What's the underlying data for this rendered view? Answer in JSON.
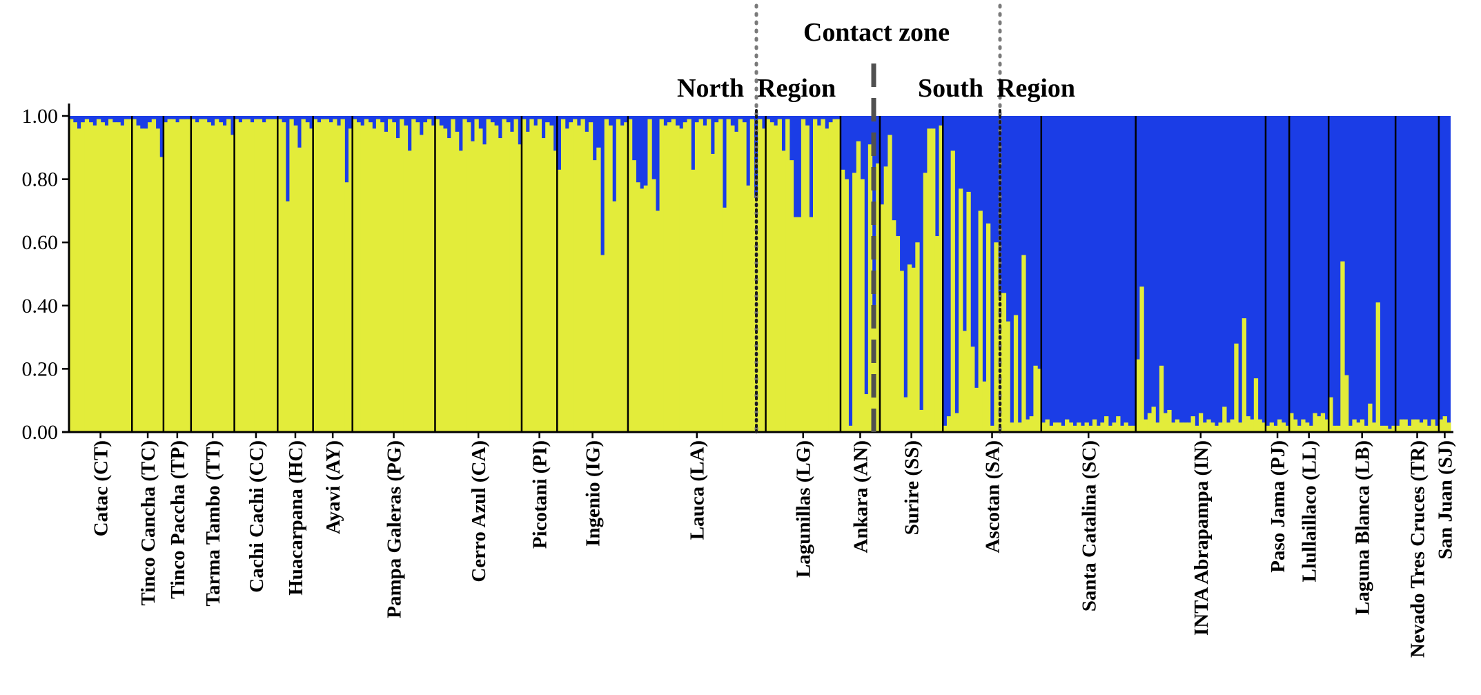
{
  "chart_data": {
    "type": "bar",
    "subtype": "stacked-admixture",
    "title": "",
    "xlabel": "",
    "ylabel": "",
    "ylim": [
      0,
      1
    ],
    "yticks": [
      "0.00",
      "0.20",
      "0.40",
      "0.60",
      "0.80",
      "1.00"
    ],
    "colors": {
      "cluster_1": "#e3ec3a",
      "cluster_2": "#1b3de6"
    },
    "annotations": {
      "contact_zone": "Contact zone",
      "north_region": "North  Region",
      "south_region": "South  Region"
    },
    "populations": [
      {
        "label": "Catac (CT)",
        "values": [
          0.99,
          0.98,
          0.96,
          0.98,
          0.99,
          0.98,
          0.97,
          0.99,
          0.98,
          0.97,
          0.99,
          0.98,
          0.98,
          0.97,
          0.99,
          0.99
        ]
      },
      {
        "label": "Tinco Cancha (TC)",
        "values": [
          0.99,
          0.97,
          0.96,
          0.96,
          0.98,
          0.99,
          0.96,
          0.87
        ]
      },
      {
        "label": "Tinco Paccha (TP)",
        "values": [
          0.98,
          0.99,
          0.99,
          0.98,
          0.99,
          0.99,
          0.99
        ]
      },
      {
        "label": "Tarma Tambo (TT)",
        "values": [
          0.99,
          0.98,
          0.99,
          0.99,
          0.98,
          0.97,
          0.99,
          0.98,
          0.97,
          0.99,
          0.94
        ]
      },
      {
        "label": "Cachi Cachi (CC)",
        "values": [
          0.99,
          0.98,
          0.99,
          0.99,
          0.98,
          0.99,
          0.99,
          0.98,
          0.99,
          0.99,
          0.99
        ]
      },
      {
        "label": "Huacarpana (HC)",
        "values": [
          0.99,
          0.98,
          0.73,
          0.99,
          0.97,
          0.9,
          0.99,
          0.98,
          0.96
        ]
      },
      {
        "label": "Ayavi (AY)",
        "values": [
          0.99,
          0.98,
          0.99,
          0.99,
          0.98,
          0.99,
          0.97,
          0.99,
          0.79,
          0.96
        ]
      },
      {
        "label": "Pampa Galeras (PG)",
        "values": [
          0.99,
          0.98,
          0.97,
          0.99,
          0.98,
          0.96,
          0.99,
          0.98,
          0.95,
          0.99,
          0.98,
          0.93,
          0.99,
          0.97,
          0.89,
          0.99,
          0.98,
          0.94,
          0.98,
          0.99,
          0.97
        ]
      },
      {
        "label": "Cerro Azul (CA)",
        "values": [
          0.99,
          0.97,
          0.96,
          0.93,
          0.99,
          0.95,
          0.89,
          0.99,
          0.98,
          0.92,
          0.99,
          0.96,
          0.91,
          0.99,
          0.98,
          0.97,
          0.93,
          0.99,
          0.98,
          0.95,
          0.99,
          0.91
        ]
      },
      {
        "label": "Picotani (PI)",
        "values": [
          0.99,
          0.95,
          0.99,
          0.97,
          0.99,
          0.93,
          0.98,
          0.97,
          0.89
        ]
      },
      {
        "label": "Ingenio (IG)",
        "values": [
          0.83,
          0.99,
          0.96,
          0.98,
          0.99,
          0.97,
          0.99,
          0.95,
          0.98,
          0.86,
          0.9,
          0.56,
          0.99,
          0.97,
          0.73,
          0.99,
          0.97,
          0.98
        ]
      },
      {
        "label": "Lauca (LA)",
        "values": [
          0.99,
          0.86,
          0.79,
          0.77,
          0.78,
          0.99,
          0.8,
          0.7,
          0.99,
          0.97,
          0.98,
          0.99,
          0.97,
          0.96,
          0.98,
          0.99,
          0.83,
          0.98,
          0.99,
          0.97,
          0.99,
          0.88,
          0.98,
          0.99,
          0.71,
          0.99,
          0.97,
          0.95,
          0.99,
          0.98,
          0.78,
          0.99,
          0.74,
          0.99,
          0.96
        ]
      },
      {
        "label": "Lagunillas (LG)",
        "values": [
          0.99,
          0.98,
          0.97,
          0.99,
          0.89,
          0.99,
          0.86,
          0.68,
          0.68,
          0.99,
          0.97,
          0.68,
          0.99,
          0.97,
          0.99,
          0.96,
          0.98,
          0.99,
          0.99
        ]
      },
      {
        "label": "Ankara (AN)",
        "values": [
          0.83,
          0.8,
          0.02,
          0.82,
          0.92,
          0.8,
          0.12,
          0.91,
          0.4,
          0.85
        ]
      },
      {
        "label": "Surire (SS)",
        "values": [
          0.72,
          0.84,
          0.94,
          0.67,
          0.62,
          0.51,
          0.11,
          0.53,
          0.52,
          0.6,
          0.07,
          0.82,
          0.96,
          0.96,
          0.62,
          0.97
        ]
      },
      {
        "label": "Ascotan (SA)",
        "values": [
          0.02,
          0.05,
          0.89,
          0.06,
          0.77,
          0.32,
          0.76,
          0.27,
          0.14,
          0.7,
          0.16,
          0.66,
          0.02,
          0.6,
          0.44,
          0.44,
          0.35,
          0.03,
          0.37,
          0.03,
          0.56,
          0.04,
          0.05,
          0.21,
          0.2
        ]
      },
      {
        "label": "Santa Catalina (SC)",
        "values": [
          0.03,
          0.04,
          0.02,
          0.03,
          0.03,
          0.02,
          0.04,
          0.03,
          0.02,
          0.03,
          0.02,
          0.03,
          0.02,
          0.04,
          0.02,
          0.03,
          0.05,
          0.02,
          0.03,
          0.05,
          0.02,
          0.03,
          0.02,
          0.02
        ]
      },
      {
        "label": "INTA Abrapampa (IN)",
        "values": [
          0.23,
          0.46,
          0.04,
          0.06,
          0.08,
          0.03,
          0.21,
          0.06,
          0.07,
          0.03,
          0.04,
          0.03,
          0.03,
          0.03,
          0.05,
          0.02,
          0.06,
          0.03,
          0.04,
          0.03,
          0.02,
          0.03,
          0.08,
          0.03,
          0.04,
          0.28,
          0.03,
          0.36,
          0.05,
          0.04,
          0.17,
          0.04,
          0.03
        ]
      },
      {
        "label": "Paso Jama (PJ)",
        "values": [
          0.02,
          0.03,
          0.02,
          0.04,
          0.03,
          0.02
        ]
      },
      {
        "label": "Llullaillaco (LL)",
        "values": [
          0.06,
          0.04,
          0.02,
          0.04,
          0.03,
          0.02,
          0.06,
          0.05,
          0.06,
          0.04
        ]
      },
      {
        "label": "Laguna Blanca (LB)",
        "values": [
          0.11,
          0.02,
          0.02,
          0.54,
          0.18,
          0.02,
          0.04,
          0.03,
          0.04,
          0.02,
          0.09,
          0.03,
          0.41,
          0.02,
          0.02,
          0.01,
          0.02
        ]
      },
      {
        "label": "Nevado Tres Cruces (TR)",
        "values": [
          0.02,
          0.04,
          0.04,
          0.02,
          0.04,
          0.04,
          0.03,
          0.04,
          0.02,
          0.04,
          0.02
        ]
      },
      {
        "label": "San Juan (SJ)",
        "values": [
          0.04,
          0.05,
          0.03
        ]
      }
    ]
  }
}
